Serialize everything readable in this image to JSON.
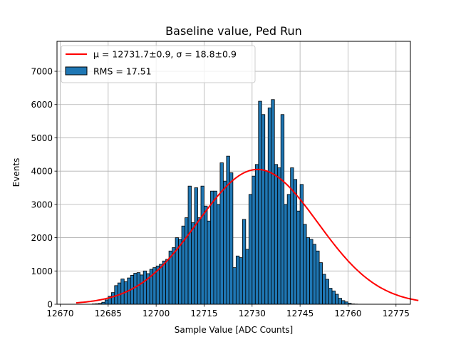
{
  "chart_data": {
    "type": "bar",
    "title": "Baseline value, Ped Run",
    "xlabel": "Sample Value [ADC Counts]",
    "ylabel": "Events",
    "xlim": [
      12669,
      12779.5
    ],
    "ylim": [
      0,
      7900
    ],
    "xticks": [
      "12670",
      "12685",
      "12700",
      "12715",
      "12730",
      "12745",
      "12760",
      "12775"
    ],
    "yticks": [
      "0",
      "1000",
      "2000",
      "3000",
      "4000",
      "5000",
      "6000",
      "7000"
    ],
    "grid": true,
    "legend_position": "top-left",
    "legend": {
      "fit_label": "μ = 12731.7±0.9, σ = 18.8±0.9",
      "hist_label": "RMS = 17.51"
    },
    "histogram": {
      "bin_start": 12680,
      "bin_width": 1,
      "color": "#1f77b4",
      "edgecolor": "#000000",
      "counts": [
        10,
        15,
        25,
        60,
        130,
        240,
        350,
        560,
        640,
        760,
        680,
        790,
        870,
        930,
        950,
        880,
        1000,
        920,
        1050,
        1100,
        1150,
        1200,
        1300,
        1350,
        1600,
        1700,
        2000,
        1950,
        2350,
        2600,
        3550,
        2450,
        3500,
        2600,
        3550,
        2950,
        2500,
        3400,
        3400,
        3000,
        4250,
        3700,
        4450,
        3950,
        1100,
        1450,
        1400,
        2550,
        1650,
        3300,
        3850,
        4200,
        6100,
        5700,
        4000,
        5900,
        6150,
        4200,
        4100,
        5700,
        3000,
        3300,
        4100,
        3750,
        2800,
        3600,
        2400,
        2000,
        1950,
        1800,
        1600,
        1250,
        900,
        750,
        480,
        400,
        300,
        180,
        110,
        70,
        30,
        10,
        5
      ]
    },
    "fit": {
      "mu": 12731.7,
      "sigma": 18.8,
      "amplitude": 4050,
      "x_range": [
        12675,
        12782
      ],
      "color": "#ff0000"
    }
  }
}
